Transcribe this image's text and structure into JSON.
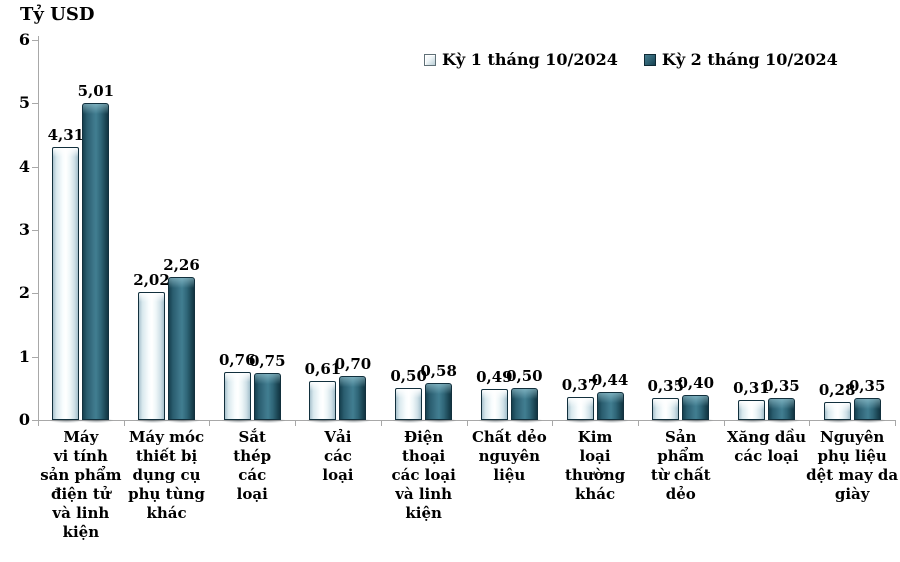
{
  "chart_data": {
    "type": "bar",
    "title": "",
    "ylabel": "Tỷ USD",
    "xlabel": "",
    "ylim": [
      0,
      6
    ],
    "ytick_step": 1,
    "grid": false,
    "legend_position": "top-center",
    "decimal_separator": ",",
    "categories": [
      "Máy vi tính sản phẩm điện tử và linh kiện",
      "Máy móc thiết bị dụng cụ phụ tùng khác",
      "Sắt thép các loại",
      "Vải các loại",
      "Điện thoại các loại và linh kiện",
      "Chất dẻo nguyên liệu",
      "Kim loại thường khác",
      "Sản phẩm từ chất dẻo",
      "Xăng dầu các loại",
      "Nguyên phụ liệu dệt may da giày"
    ],
    "categories_wrapped": [
      "Máy\nvi tính\nsản phẩm\nđiện tử\nvà linh\nkiện",
      "Máy móc\nthiết bị\ndụng cụ\nphụ tùng\nkhác",
      "Sắt\nthép\ncác\nloại",
      "Vải\ncác\nloại",
      "Điện\nthoại\ncác loại\nvà linh\nkiện",
      "Chất dẻo\nnguyên liệu",
      "Kim\nloại\nthường\nkhác",
      "Sản\nphẩm\ntừ chất\ndẻo",
      "Xăng dầu\ncác loại",
      "Nguyên\nphụ liệu\ndệt may da\ngiày"
    ],
    "series": [
      {
        "name": "Kỳ 1 tháng 10/2024",
        "style": "light",
        "values": [
          4.31,
          2.02,
          0.76,
          0.61,
          0.5,
          0.49,
          0.37,
          0.35,
          0.31,
          0.28
        ],
        "labels": [
          "4,31",
          "2,02",
          "0,76",
          "0,61",
          "0,50",
          "0,49",
          "0,37",
          "0,35",
          "0,31",
          "0,28"
        ]
      },
      {
        "name": "Kỳ 2 tháng 10/2024",
        "style": "dark",
        "values": [
          5.01,
          2.26,
          0.75,
          0.7,
          0.58,
          0.5,
          0.44,
          0.4,
          0.35,
          0.35
        ],
        "labels": [
          "5,01",
          "2,26",
          "0,75",
          "0,70",
          "0,58",
          "0,50",
          "0,44",
          "0,40",
          "0,35",
          "0,35"
        ]
      }
    ],
    "colors": {
      "series1_fill": "#e9f3f6",
      "series2_fill": "#2d5f70",
      "bar_outline": "#12303d",
      "axis": "#a8a8a8",
      "text": "#000000"
    }
  }
}
